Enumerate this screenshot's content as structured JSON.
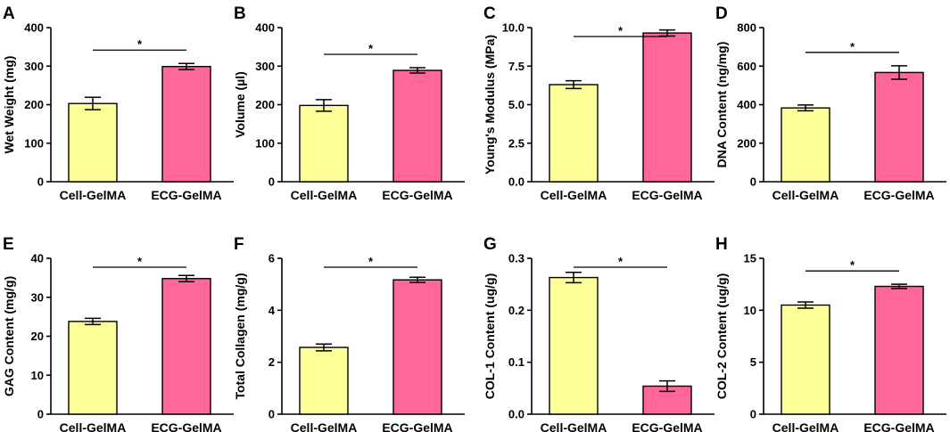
{
  "figure": {
    "colors": {
      "cell": "#FFFF99",
      "ecg": "#FF6699"
    }
  },
  "chart_data": [
    {
      "type": "bar",
      "letter": "A",
      "ylabel": "Wet Weight (mg)",
      "categories": [
        "Cell-GelMA",
        "ECG-GelMA"
      ],
      "values": [
        203,
        299
      ],
      "errors": [
        16,
        8
      ],
      "ylim": [
        0,
        400
      ],
      "ticks": [
        "0",
        "100",
        "200",
        "300",
        "400"
      ],
      "significance": "*"
    },
    {
      "type": "bar",
      "letter": "B",
      "ylabel": "Volume (µl)",
      "categories": [
        "Cell-GelMA",
        "ECG-GelMA"
      ],
      "values": [
        198,
        289
      ],
      "errors": [
        15,
        7
      ],
      "ylim": [
        0,
        400
      ],
      "ticks": [
        "0",
        "100",
        "200",
        "300",
        "400"
      ],
      "significance": "*"
    },
    {
      "type": "bar",
      "letter": "C",
      "ylabel": "Young's Modulus (MPa)",
      "categories": [
        "Cell-GelMA",
        "ECG-GelMA"
      ],
      "values": [
        6.3,
        9.65
      ],
      "errors": [
        0.25,
        0.2
      ],
      "ylim": [
        0,
        10
      ],
      "ticks": [
        "0.0",
        "2.5",
        "5.0",
        "7.5",
        "10.0"
      ],
      "significance": "*"
    },
    {
      "type": "bar",
      "letter": "D",
      "ylabel": "DNA Content (ng/mg)",
      "categories": [
        "Cell-GelMA",
        "ECG-GelMA"
      ],
      "values": [
        383,
        567
      ],
      "errors": [
        15,
        35
      ],
      "ylim": [
        0,
        800
      ],
      "ticks": [
        "0",
        "200",
        "400",
        "600",
        "800"
      ],
      "significance": "*"
    },
    {
      "type": "bar",
      "letter": "E",
      "ylabel": "GAG Content (mg/g)",
      "categories": [
        "Cell-GelMA",
        "ECG-GelMA"
      ],
      "values": [
        23.8,
        34.8
      ],
      "errors": [
        0.8,
        0.8
      ],
      "ylim": [
        0,
        40
      ],
      "ticks": [
        "0",
        "10",
        "20",
        "30",
        "40"
      ],
      "significance": "*"
    },
    {
      "type": "bar",
      "letter": "F",
      "ylabel": "Total Collagen (mg/g)",
      "categories": [
        "Cell-GelMA",
        "ECG-GelMA"
      ],
      "values": [
        2.57,
        5.17
      ],
      "errors": [
        0.13,
        0.1
      ],
      "ylim": [
        0,
        6
      ],
      "ticks": [
        "0",
        "2",
        "4",
        "6"
      ],
      "significance": "*"
    },
    {
      "type": "bar",
      "letter": "G",
      "ylabel": "COL-1 Content (ug/g)",
      "categories": [
        "Cell-GelMA",
        "ECG-GelMA"
      ],
      "values": [
        0.263,
        0.054
      ],
      "errors": [
        0.01,
        0.01
      ],
      "ylim": [
        0,
        0.3
      ],
      "ticks": [
        "0.0",
        "0.1",
        "0.2",
        "0.3"
      ],
      "significance": "*"
    },
    {
      "type": "bar",
      "letter": "H",
      "ylabel": "COL-2 Content (ug/g)",
      "categories": [
        "Cell-GelMA",
        "ECG-GelMA"
      ],
      "values": [
        10.5,
        12.3
      ],
      "errors": [
        0.3,
        0.2
      ],
      "ylim": [
        0,
        15
      ],
      "ticks": [
        "0",
        "5",
        "10",
        "15"
      ],
      "significance": "*"
    }
  ]
}
